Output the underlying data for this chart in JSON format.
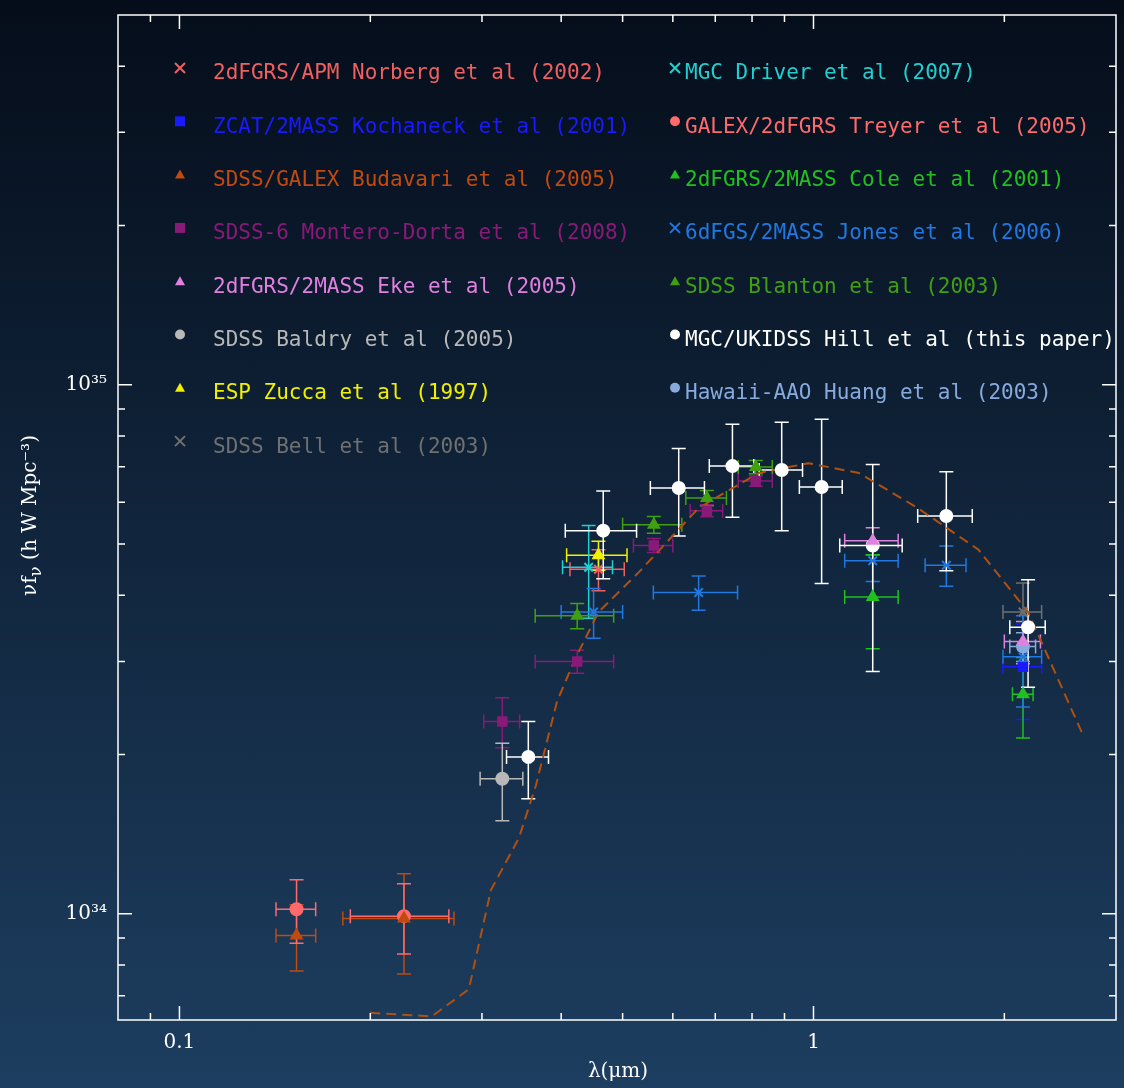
{
  "chart_data": {
    "type": "scatter",
    "xlabel": "λ(μm)",
    "ylabel": "νf$_{ν}$ (h W Mpc⁻³)",
    "log": "xy",
    "legend": "top left",
    "xlim": [
      0.08,
      3
    ],
    "xticks": [
      {
        "value": 0.09,
        "label": null
      },
      {
        "value": 0.1,
        "label": "0.1"
      },
      {
        "value": 0.2,
        "label": null
      },
      {
        "value": 0.3,
        "label": null
      },
      {
        "value": 0.4,
        "label": null
      },
      {
        "value": 0.5,
        "label": null
      },
      {
        "value": 0.6,
        "label": null
      },
      {
        "value": 0.7,
        "label": null
      },
      {
        "value": 0.8,
        "label": null
      },
      {
        "value": 0.9,
        "label": null
      },
      {
        "value": 1,
        "label": "1"
      },
      {
        "value": 2,
        "label": null
      }
    ],
    "ylim": [
      6.3e+33,
      5e+35
    ],
    "yticks": [
      {
        "value": 7e+33,
        "label": null
      },
      {
        "value": 8e+33,
        "label": null
      },
      {
        "value": 9e+33,
        "label": null
      },
      {
        "value": 1e+34,
        "label": "10³⁴"
      },
      {
        "value": 2e+34,
        "label": null
      },
      {
        "value": 3e+34,
        "label": null
      },
      {
        "value": 4e+34,
        "label": null
      },
      {
        "value": 5e+34,
        "label": null
      },
      {
        "value": 6e+34,
        "label": null
      },
      {
        "value": 7e+34,
        "label": null
      },
      {
        "value": 8e+34,
        "label": null
      },
      {
        "value": 9e+34,
        "label": null
      },
      {
        "value": 1e+35,
        "label": "10³⁵"
      },
      {
        "value": 2e+35,
        "label": null
      },
      {
        "value": 3e+35,
        "label": null
      },
      {
        "value": 4e+35,
        "label": null
      }
    ],
    "series": [
      {
        "name": "2dFGRS/APM Norberg et al (2002)",
        "color": "#f06060",
        "marker": "cross",
        "x": [
          0.458
        ],
        "values": [
          4.48e+34
        ],
        "errors": [
          4e+33
        ],
        "xerrors": [
          0.045
        ]
      },
      {
        "name": "ZCAT/2MASS Kochaneck et al (2001)",
        "color": "#1a1aff",
        "marker": "square",
        "x": [
          2.14
        ],
        "values": [
          2.93e+34
        ],
        "errors": [
          6e+33
        ],
        "xerrors": [
          0.15
        ]
      },
      {
        "name": "SDSS/GALEX Budavari et al (2005)",
        "color": "#c04a10",
        "marker": "triangle",
        "x": [
          0.153,
          0.226
        ],
        "values": [
          9.1e+33,
          9.8e+33
        ],
        "errors": [
          1.3e+33,
          2.1e+33
        ],
        "xerrors": [
          0.011,
          0.045
        ]
      },
      {
        "name": "SDSS-6 Montero-Dorta et al (2008)",
        "color": "#8a1a78",
        "marker": "square",
        "x": [
          0.323,
          0.424,
          0.56,
          0.679,
          0.811
        ],
        "values": [
          2.31e+34,
          3e+34,
          4.97e+34,
          5.78e+34,
          6.58e+34
        ],
        "errors": [
          2.5e+33,
          1.5e+33,
          1.5e+33,
          1.5e+33,
          1.5e+33
        ],
        "xerrors": [
          0.021,
          0.06,
          0.04,
          0.04,
          0.05
        ]
      },
      {
        "name": "2dFGRS/2MASS Eke et al (2005)",
        "color": "#e080e0",
        "marker": "triangle",
        "x": [
          1.24,
          2.14
        ],
        "values": [
          5.07e+34,
          3.27e+34
        ],
        "errors": [
          3e+33,
          3e+33
        ],
        "xerrors": [
          0.12,
          0.14
        ]
      },
      {
        "name": "SDSS Baldry et al (2005)",
        "color": "#b8b8b8",
        "marker": "circle",
        "x": [
          0.323
        ],
        "values": [
          1.8e+34
        ],
        "errors": [
          3e+33
        ],
        "xerrors": [
          0.025
        ]
      },
      {
        "name": "ESP Zucca et al (1997)",
        "color": "#f0f000",
        "marker": "triangle",
        "x": [
          0.458
        ],
        "values": [
          4.76e+34
        ],
        "errors": [
          3e+33
        ],
        "xerrors": [
          0.05
        ]
      },
      {
        "name": "SDSS Bell et al (2003)",
        "color": "#707070",
        "marker": "cross",
        "x": [
          2.14
        ],
        "values": [
          3.72e+34
        ],
        "errors": [
          5e+33
        ],
        "xerrors": [
          0.15
        ]
      },
      {
        "name": "MGC Driver et al (2007)",
        "color": "#20d0d0",
        "marker": "cross",
        "x": [
          0.442
        ],
        "values": [
          4.52e+34
        ],
        "errors": [
          9e+33
        ],
        "xerrors": [
          0.04
        ]
      },
      {
        "name": "GALEX/2dFGRS Treyer et al (2005)",
        "color": "#ff6a6a",
        "marker": "circle",
        "x": [
          0.153,
          0.226
        ],
        "values": [
          1.02e+34,
          9.9e+33
        ],
        "errors": [
          1.4e+33,
          1.5e+33
        ],
        "xerrors": [
          0.011,
          0.04
        ]
      },
      {
        "name": "2dFGRS/2MASS Cole et al (2001)",
        "color": "#20c020",
        "marker": "triangle",
        "x": [
          1.24,
          2.14
        ],
        "values": [
          3.97e+34,
          2.6e+34
        ],
        "errors": [
          8e+33,
          4.5e+33
        ],
        "xerrors": [
          0.12,
          0.08
        ]
      },
      {
        "name": "6dFGS/2MASS Jones et al (2006)",
        "color": "#2078e0",
        "marker": "cross",
        "x": [
          0.45,
          0.659,
          1.24,
          1.62,
          2.14
        ],
        "values": [
          3.72e+34,
          4.05e+34,
          4.65e+34,
          4.56e+34,
          3.06e+34
        ],
        "errors": [
          4e+33,
          3e+33,
          4e+33,
          4e+33,
          6e+33
        ],
        "xerrors": [
          0.05,
          0.1,
          0.12,
          0.12,
          0.15
        ]
      },
      {
        "name": "SDSS Blanton et al (2003)",
        "color": "#40a010",
        "marker": "triangle",
        "x": [
          0.424,
          0.56,
          0.679,
          0.811
        ],
        "values": [
          3.66e+34,
          5.44e+34,
          6.11e+34,
          6.99e+34
        ],
        "errors": [
          2e+33,
          2e+33,
          2e+33,
          2e+33
        ],
        "xerrors": [
          0.06,
          0.06,
          0.05,
          0.05
        ]
      },
      {
        "name": "MGC/UKIDSS Hill et al (this paper)",
        "color": "#ffffff",
        "marker": "circle",
        "x": [
          0.355,
          0.466,
          0.613,
          0.745,
          0.891,
          1.03,
          1.24,
          1.62,
          2.18
        ],
        "values": [
          1.98e+34,
          5.3e+34,
          6.38e+34,
          7.02e+34,
          6.9e+34,
          6.41e+34,
          4.97e+34,
          5.65e+34,
          3.48e+34
        ],
        "errors": [
          3.3e+33,
          1e+34,
          1.2e+34,
          1.4e+34,
          1.6e+34,
          2.2e+34,
          2.1e+34,
          1.2e+34,
          8e+33
        ],
        "xerrors": [
          0.027,
          0.06,
          0.06,
          0.06,
          0.07,
          0.08,
          0.14,
          0.16,
          0.14
        ]
      },
      {
        "name": "Hawaii-AAO Huang et al (2003)",
        "color": "#88aadd",
        "marker": "circle",
        "x": [
          2.14
        ],
        "values": [
          3.2e+34
        ],
        "errors": [
          2e+33
        ],
        "xerrors": [
          0.1
        ]
      },
      {
        "type": "line",
        "color": "#b05010",
        "marker": "none",
        "line_style": "dashed",
        "x": [
          0.2,
          0.25,
          0.286,
          0.31,
          0.343,
          0.365,
          0.394,
          0.419,
          0.458,
          0.53,
          0.659,
          0.819,
          0.982,
          1.18,
          1.46,
          1.82,
          2.18,
          2.66
        ],
        "values": [
          6.5e+33,
          6.4e+33,
          7.2e+33,
          1.11e+34,
          1.39e+34,
          1.75e+34,
          2.52e+34,
          3e+34,
          3.72e+34,
          4.42e+34,
          5.85e+34,
          6.81e+34,
          7.11e+34,
          6.81e+34,
          5.85e+34,
          4.88e+34,
          3.72e+34,
          2.18e+34
        ]
      }
    ]
  }
}
